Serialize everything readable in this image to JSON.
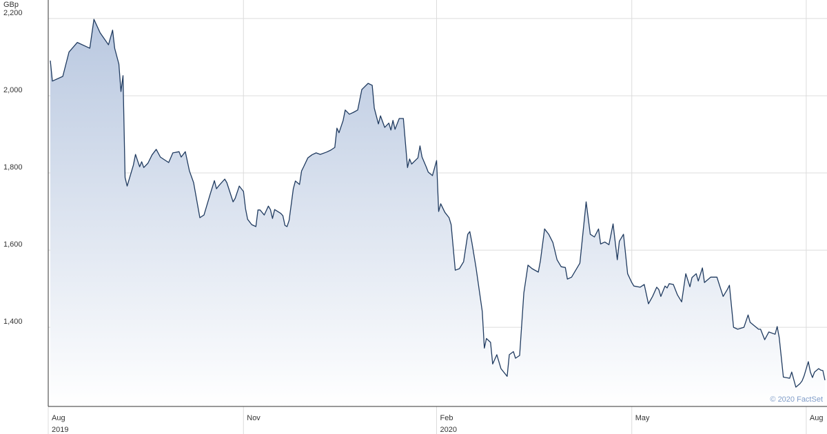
{
  "chart_data": {
    "type": "area",
    "y_unit_label": "GBp",
    "source": "© 2020 FactSet",
    "color": "#1f3a5f",
    "fill_color": "#b9c8e0",
    "grid": true,
    "xlim": [
      0,
      375
    ],
    "xticks": [
      {
        "value": 0,
        "label": "Aug"
      },
      {
        "value": 94,
        "label": "Nov"
      },
      {
        "value": 187,
        "label": "Feb"
      },
      {
        "value": 281,
        "label": "May"
      },
      {
        "value": 365,
        "label": "Aug"
      }
    ],
    "x_sublabels": [
      {
        "value": 0,
        "label": "2019"
      },
      {
        "value": 187,
        "label": "2020"
      }
    ],
    "ylim": [
      1195,
      2248
    ],
    "yticks": [
      {
        "value": 1400,
        "label": "1,400"
      },
      {
        "value": 1600,
        "label": "1,600"
      },
      {
        "value": 1800,
        "label": "1,800"
      },
      {
        "value": 2000,
        "label": "2,000"
      },
      {
        "value": 2200,
        "label": "2,200"
      }
    ],
    "x": [
      1,
      2,
      7,
      10,
      14,
      20,
      22,
      25,
      29,
      31,
      32,
      34,
      35,
      36,
      37,
      38,
      41,
      42,
      44,
      45,
      46,
      48,
      50,
      52,
      54,
      56,
      58,
      60,
      63,
      64,
      66,
      68,
      70,
      71,
      73,
      75,
      78,
      80,
      81,
      82,
      85,
      86,
      89,
      90,
      92,
      94,
      95,
      96,
      98,
      100,
      101,
      102,
      104,
      106,
      107,
      108,
      109,
      112,
      113,
      114,
      115,
      116,
      118,
      119,
      121,
      122,
      123,
      125,
      127,
      129,
      131,
      134,
      136,
      138,
      139,
      140,
      142,
      143,
      145,
      147,
      149,
      151,
      154,
      156,
      157,
      159,
      160,
      162,
      164,
      165,
      166,
      167,
      169,
      171,
      173,
      174,
      175,
      178,
      179,
      180,
      182,
      183,
      185,
      187,
      188,
      189,
      191,
      193,
      194,
      196,
      198,
      200,
      202,
      203,
      204,
      206,
      209,
      210,
      211,
      213,
      214,
      216,
      218,
      221,
      222,
      224,
      225,
      227,
      229,
      231,
      233,
      236,
      237,
      239,
      241,
      243,
      245,
      247,
      249,
      250,
      252,
      254,
      256,
      259,
      261,
      263,
      265,
      266,
      268,
      270,
      272,
      274,
      275,
      277,
      279,
      281,
      282,
      285,
      287,
      289,
      291,
      293,
      294,
      295,
      297,
      298,
      299,
      301,
      303,
      305,
      307,
      309,
      310,
      312,
      313,
      315,
      316,
      319,
      322,
      323,
      325,
      327,
      328,
      330,
      332,
      335,
      337,
      338,
      342,
      343,
      345,
      347,
      350,
      351,
      352,
      354,
      357,
      358,
      360,
      362,
      363,
      364,
      366,
      367,
      368,
      369,
      371,
      372,
      373,
      374
    ],
    "values": [
      2091,
      2038,
      2050,
      2113,
      2138,
      2123,
      2198,
      2163,
      2132,
      2170,
      2123,
      2082,
      2011,
      2052,
      1788,
      1766,
      1820,
      1848,
      1816,
      1829,
      1814,
      1825,
      1847,
      1861,
      1841,
      1834,
      1827,
      1852,
      1855,
      1841,
      1855,
      1805,
      1775,
      1745,
      1684,
      1691,
      1745,
      1780,
      1759,
      1766,
      1784,
      1775,
      1725,
      1734,
      1766,
      1752,
      1707,
      1680,
      1666,
      1661,
      1704,
      1704,
      1691,
      1714,
      1705,
      1682,
      1705,
      1695,
      1689,
      1664,
      1661,
      1677,
      1759,
      1779,
      1770,
      1805,
      1816,
      1839,
      1847,
      1852,
      1848,
      1854,
      1859,
      1866,
      1916,
      1904,
      1936,
      1963,
      1952,
      1957,
      1963,
      2016,
      2032,
      2027,
      1968,
      1927,
      1948,
      1918,
      1929,
      1911,
      1936,
      1913,
      1941,
      1941,
      1814,
      1836,
      1823,
      1839,
      1870,
      1841,
      1816,
      1802,
      1793,
      1832,
      1700,
      1720,
      1698,
      1684,
      1666,
      1548,
      1552,
      1570,
      1641,
      1648,
      1620,
      1555,
      1441,
      1346,
      1371,
      1361,
      1305,
      1329,
      1293,
      1273,
      1329,
      1337,
      1320,
      1327,
      1489,
      1561,
      1552,
      1543,
      1573,
      1655,
      1641,
      1620,
      1575,
      1557,
      1555,
      1525,
      1530,
      1548,
      1566,
      1725,
      1641,
      1634,
      1655,
      1616,
      1621,
      1614,
      1668,
      1575,
      1623,
      1641,
      1539,
      1516,
      1507,
      1504,
      1511,
      1461,
      1480,
      1504,
      1498,
      1480,
      1507,
      1502,
      1513,
      1511,
      1484,
      1466,
      1539,
      1505,
      1529,
      1539,
      1520,
      1554,
      1516,
      1530,
      1530,
      1513,
      1480,
      1498,
      1509,
      1400,
      1395,
      1400,
      1432,
      1413,
      1395,
      1395,
      1368,
      1388,
      1382,
      1402,
      1373,
      1271,
      1268,
      1284,
      1245,
      1254,
      1261,
      1275,
      1311,
      1284,
      1270,
      1284,
      1293,
      1289,
      1288,
      1263
    ]
  }
}
